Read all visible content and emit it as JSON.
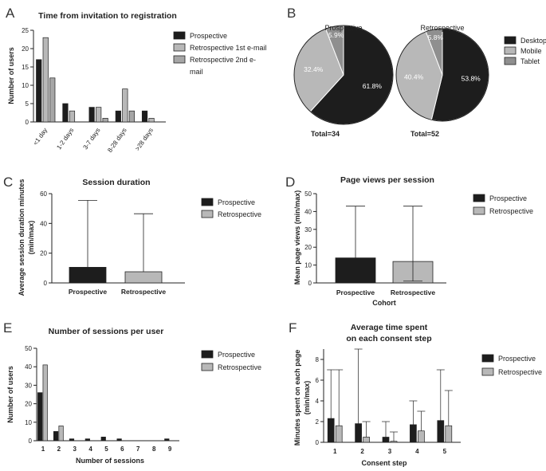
{
  "colors": {
    "prospective": "#1d1d1d",
    "retro1": "#b8b8b8",
    "retro2": "#a6a6a6",
    "desktop": "#1d1d1d",
    "mobile": "#b8b8b8",
    "tablet": "#8f8f8f",
    "stroke": "#222222"
  },
  "chart_data": [
    {
      "id": "A",
      "panel_letter": "A",
      "type": "bar",
      "title": "Time from invitation to registration",
      "ylabel": "Number of users",
      "xlabel": "",
      "ylim": [
        0,
        25
      ],
      "yticks": [
        "0",
        "5",
        "10",
        "15",
        "20",
        "25"
      ],
      "categories": [
        "<1 day",
        "1-2 days",
        "3-7 days",
        "8-28 days",
        ">28 days"
      ],
      "series": [
        {
          "name": "Prospective",
          "values": [
            17,
            5,
            4,
            3,
            3
          ]
        },
        {
          "name": "Retrospective 1st e-mail",
          "values": [
            23,
            3,
            4,
            9,
            1
          ]
        },
        {
          "name": "Retrospective 2nd e-mail",
          "values": [
            12,
            0,
            1,
            3,
            0
          ]
        }
      ],
      "legend": [
        "Prospective",
        "Retrospective 1st e-mail",
        "Retrospective 2nd e-",
        "mail"
      ]
    },
    {
      "id": "B",
      "panel_letter": "B",
      "type": "pie",
      "pies": [
        {
          "title": "Prospective",
          "total_label": "Total=34",
          "slices": [
            {
              "name": "Desktop",
              "value": 61.8,
              "label": "61.8%"
            },
            {
              "name": "Mobile",
              "value": 32.4,
              "label": "32.4%"
            },
            {
              "name": "Tablet",
              "value": 5.9,
              "label": "5.9%"
            }
          ]
        },
        {
          "title": "Retrospective",
          "total_label": "Total=52",
          "slices": [
            {
              "name": "Desktop",
              "value": 53.8,
              "label": "53.8%"
            },
            {
              "name": "Mobile",
              "value": 40.4,
              "label": "40.4%"
            },
            {
              "name": "Tablet",
              "value": 5.8,
              "label": "5.8%"
            }
          ]
        }
      ],
      "legend": [
        "Desktop",
        "Mobile",
        "Tablet"
      ]
    },
    {
      "id": "C",
      "panel_letter": "C",
      "type": "bar",
      "title": "Session duration",
      "ylabel": "Average session duration minutes (min/max)",
      "ylabel_lines": [
        "Average session duration minutes",
        "(min/max)"
      ],
      "xlabel": "",
      "ylim": [
        0,
        60
      ],
      "yticks": [
        "0",
        "20",
        "40",
        "60"
      ],
      "categories": [
        "Prospective",
        "Retrospective"
      ],
      "values": [
        10.5,
        7.5
      ],
      "err_max": [
        55.5,
        46.5
      ],
      "err_min": [
        null,
        null
      ],
      "legend": [
        "Prospective",
        "Retrospective"
      ]
    },
    {
      "id": "D",
      "panel_letter": "D",
      "type": "bar",
      "title": "Page views per session",
      "ylabel": "Mean page views (min/max)",
      "xlabel": "Cohort",
      "ylim": [
        0,
        50
      ],
      "yticks": [
        "0",
        "10",
        "20",
        "30",
        "40",
        "50"
      ],
      "categories": [
        "Prospective",
        "Retrospective"
      ],
      "values": [
        14,
        12
      ],
      "err_max": [
        43,
        43
      ],
      "err_min": [
        null,
        1
      ],
      "legend": [
        "Prospective",
        "Retrospective"
      ]
    },
    {
      "id": "E",
      "panel_letter": "E",
      "type": "bar",
      "title": "Number of sessions per user",
      "ylabel": "Number of users",
      "xlabel": "Number of sessions",
      "ylim": [
        0,
        50
      ],
      "yticks": [
        "0",
        "10",
        "20",
        "30",
        "40",
        "50"
      ],
      "categories": [
        "1",
        "2",
        "3",
        "4",
        "5",
        "6",
        "7",
        "8",
        "9"
      ],
      "series": [
        {
          "name": "Prospective",
          "values": [
            26,
            5,
            1,
            1,
            2,
            1,
            0,
            0,
            1
          ]
        },
        {
          "name": "Retrospective",
          "values": [
            41,
            8,
            0,
            0,
            0,
            0,
            0,
            0,
            0
          ]
        }
      ],
      "legend": [
        "Prospective",
        "Retrospective"
      ]
    },
    {
      "id": "F",
      "panel_letter": "F",
      "type": "bar",
      "title": "Average time spent on each consent step",
      "title_lines": [
        "Average time spent",
        "on each consent step"
      ],
      "ylabel": "Minutes spent on each page (min/max)",
      "ylabel_lines": [
        "Minutes spent on each page",
        "(min/max)"
      ],
      "xlabel": "Consent step",
      "ylim": [
        0,
        9
      ],
      "yticks": [
        "0",
        "2",
        "4",
        "6",
        "8"
      ],
      "categories": [
        "1",
        "2",
        "3",
        "4",
        "5"
      ],
      "series": [
        {
          "name": "Prospective",
          "values": [
            2.3,
            1.8,
            0.5,
            1.7,
            2.1
          ],
          "err_max": [
            7,
            9,
            2,
            4,
            7
          ]
        },
        {
          "name": "Retrospective",
          "values": [
            1.6,
            0.5,
            0.1,
            1.1,
            1.6
          ],
          "err_max": [
            7,
            2,
            1,
            3,
            5
          ]
        }
      ],
      "legend": [
        "Prospective",
        "Retrospective"
      ]
    }
  ]
}
